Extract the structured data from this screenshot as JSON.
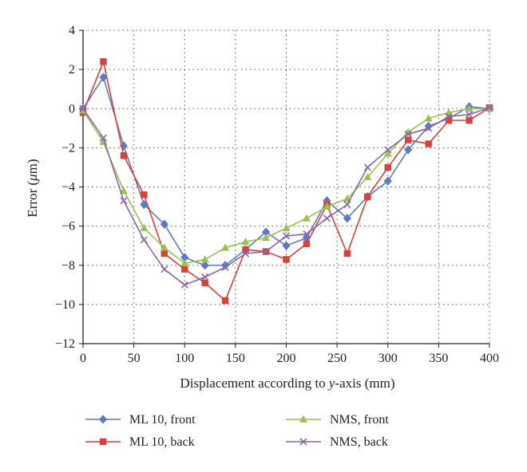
{
  "chart_data": {
    "type": "line",
    "xlabel_parts": [
      "Displacement according to ",
      "y",
      "-axis (mm)"
    ],
    "ylabel_parts": [
      "Error (",
      "μ",
      "m)"
    ],
    "xlim": [
      0,
      400
    ],
    "ylim": [
      -12,
      4
    ],
    "x_ticks": [
      0,
      50,
      100,
      150,
      200,
      250,
      300,
      350,
      400
    ],
    "y_ticks": [
      -12,
      -10,
      -8,
      -6,
      -4,
      -2,
      0,
      2,
      4
    ],
    "grid": "dotted",
    "legend_position": "bottom",
    "x": [
      0,
      20,
      40,
      60,
      80,
      100,
      120,
      140,
      160,
      180,
      200,
      220,
      240,
      260,
      280,
      300,
      320,
      340,
      360,
      380,
      400
    ],
    "series": [
      {
        "name": "ML 10, front",
        "color": "#5B7CC4",
        "marker": "diamond",
        "values": [
          0,
          1.6,
          -1.9,
          -4.9,
          -5.9,
          -7.6,
          -8.0,
          -8.0,
          -7.2,
          -6.3,
          -7.0,
          -6.6,
          -4.7,
          -5.6,
          -4.5,
          -3.7,
          -2.1,
          -0.9,
          -0.5,
          0.1,
          0
        ]
      },
      {
        "name": "ML 10, back",
        "color": "#D9413B",
        "marker": "square",
        "values": [
          -0.2,
          2.4,
          -2.4,
          -4.4,
          -7.4,
          -8.2,
          -8.9,
          -9.8,
          -7.2,
          -7.3,
          -7.7,
          -6.9,
          -4.9,
          -7.4,
          -4.5,
          -3.0,
          -1.6,
          -1.8,
          -0.6,
          -0.6,
          0.05
        ]
      },
      {
        "name": "NMS, front",
        "color": "#99C24D",
        "marker": "triangle",
        "values": [
          -0.1,
          -1.7,
          -4.2,
          -6.1,
          -7.1,
          -7.9,
          -7.7,
          -7.1,
          -6.8,
          -6.6,
          -6.1,
          -5.6,
          -5.0,
          -4.6,
          -3.5,
          -2.3,
          -1.2,
          -0.5,
          -0.2,
          0,
          0
        ]
      },
      {
        "name": "NMS, back",
        "color": "#8A66AE",
        "marker": "x",
        "values": [
          0,
          -1.5,
          -4.7,
          -6.7,
          -8.2,
          -9.0,
          -8.6,
          -8.1,
          -7.4,
          -7.3,
          -6.5,
          -6.4,
          -5.6,
          -4.9,
          -3.0,
          -2.1,
          -1.3,
          -1.0,
          -0.4,
          -0.3,
          0.05
        ]
      }
    ]
  }
}
